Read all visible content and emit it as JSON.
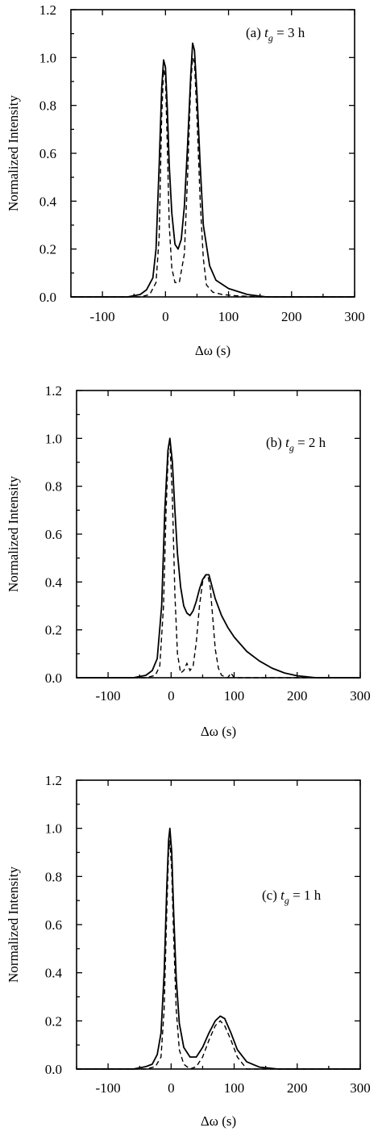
{
  "chart_data": [
    {
      "type": "line",
      "panel_label": "(a) ",
      "panel_var": "t",
      "panel_sub": "g",
      "panel_rest": " = 3 h",
      "xlabel": "Δω (s)",
      "ylabel": "Normalized Intensity",
      "xlim": [
        -150,
        300
      ],
      "ylim": [
        0,
        1.2
      ],
      "xticks": [
        -100,
        0,
        100,
        200,
        300
      ],
      "xtick_labels": [
        "-100",
        "0",
        "100",
        "200",
        "300"
      ],
      "yticks": [
        0,
        0.2,
        0.4,
        0.6,
        0.8,
        1.0,
        1.2
      ],
      "ytick_labels": [
        "0.0",
        "0.2",
        "0.4",
        "0.6",
        "0.8",
        "1.0",
        "1.2"
      ],
      "series": [
        {
          "style": "solid",
          "x": [
            -150,
            -60,
            -40,
            -30,
            -20,
            -15,
            -10,
            -6,
            -3,
            0,
            3,
            6,
            10,
            15,
            20,
            25,
            30,
            35,
            40,
            43,
            46,
            50,
            55,
            60,
            70,
            80,
            100,
            130,
            160,
            200,
            240,
            300
          ],
          "y": [
            0.0,
            0.0,
            0.01,
            0.03,
            0.08,
            0.2,
            0.55,
            0.87,
            0.99,
            0.96,
            0.78,
            0.55,
            0.35,
            0.22,
            0.2,
            0.24,
            0.38,
            0.63,
            0.92,
            1.06,
            1.03,
            0.85,
            0.55,
            0.3,
            0.13,
            0.07,
            0.035,
            0.01,
            0.0,
            0.0,
            0.0,
            0.0
          ]
        },
        {
          "style": "dashed",
          "x": [
            -150,
            -40,
            -25,
            -15,
            -10,
            -6,
            -3,
            0,
            3,
            6,
            10,
            15,
            22,
            30,
            35,
            40,
            43,
            46,
            50,
            55,
            60,
            65,
            75,
            90,
            110,
            150,
            300
          ],
          "y": [
            0.0,
            0.0,
            0.01,
            0.06,
            0.25,
            0.75,
            0.95,
            0.92,
            0.62,
            0.3,
            0.12,
            0.06,
            0.06,
            0.18,
            0.5,
            0.88,
            1.0,
            0.98,
            0.75,
            0.4,
            0.16,
            0.05,
            0.02,
            0.01,
            0.005,
            0.0,
            0.0
          ]
        }
      ]
    },
    {
      "type": "line",
      "panel_label": "(b) ",
      "panel_var": "t",
      "panel_sub": "g",
      "panel_rest": " = 2 h",
      "xlabel": "Δω (s)",
      "ylabel": "Normalized Intensity",
      "xlim": [
        -150,
        300
      ],
      "ylim": [
        0,
        1.2
      ],
      "xticks": [
        -100,
        0,
        100,
        200,
        300
      ],
      "xtick_labels": [
        "-100",
        "0",
        "100",
        "200",
        "300"
      ],
      "yticks": [
        0,
        0.2,
        0.4,
        0.6,
        0.8,
        1.0,
        1.2
      ],
      "ytick_labels": [
        "0.0",
        "0.2",
        "0.4",
        "0.6",
        "0.8",
        "1.0",
        "1.2"
      ],
      "series": [
        {
          "style": "solid",
          "x": [
            -150,
            -60,
            -40,
            -30,
            -22,
            -15,
            -10,
            -5,
            -2,
            2,
            6,
            10,
            15,
            20,
            25,
            30,
            35,
            40,
            45,
            50,
            55,
            60,
            65,
            70,
            80,
            90,
            100,
            120,
            140,
            160,
            180,
            200,
            230,
            300
          ],
          "y": [
            0.0,
            0.0,
            0.01,
            0.03,
            0.08,
            0.3,
            0.7,
            0.95,
            1.0,
            0.9,
            0.7,
            0.52,
            0.38,
            0.3,
            0.27,
            0.26,
            0.28,
            0.32,
            0.37,
            0.41,
            0.43,
            0.43,
            0.38,
            0.33,
            0.26,
            0.21,
            0.17,
            0.11,
            0.07,
            0.04,
            0.02,
            0.008,
            0.0,
            0.0
          ]
        },
        {
          "style": "dashed",
          "x": [
            -150,
            -40,
            -25,
            -18,
            -12,
            -8,
            -4,
            -2,
            2,
            6,
            10,
            15,
            20,
            25,
            30,
            35,
            40,
            45,
            50,
            55,
            58,
            62,
            66,
            70,
            75,
            80,
            90,
            95,
            100,
            110,
            300
          ],
          "y": [
            0.0,
            0.0,
            0.01,
            0.05,
            0.3,
            0.7,
            0.97,
            0.99,
            0.75,
            0.35,
            0.1,
            0.02,
            0.03,
            0.06,
            0.03,
            0.05,
            0.15,
            0.3,
            0.4,
            0.43,
            0.43,
            0.38,
            0.25,
            0.12,
            0.04,
            0.01,
            0.0,
            0.02,
            0.0,
            0.0,
            0.0
          ]
        }
      ]
    },
    {
      "type": "line",
      "panel_label": "(c) ",
      "panel_var": "t",
      "panel_sub": "g",
      "panel_rest": " = 1 h",
      "xlabel": "Δω (s)",
      "ylabel": "Normalized Intensity",
      "xlim": [
        -150,
        300
      ],
      "ylim": [
        0,
        1.2
      ],
      "xticks": [
        -100,
        0,
        100,
        200,
        300
      ],
      "xtick_labels": [
        "-100",
        "0",
        "100",
        "200",
        "300"
      ],
      "yticks": [
        0,
        0.2,
        0.4,
        0.6,
        0.8,
        1.0,
        1.2
      ],
      "ytick_labels": [
        "0.0",
        "0.2",
        "0.4",
        "0.6",
        "0.8",
        "1.0",
        "1.2"
      ],
      "series": [
        {
          "style": "solid",
          "x": [
            -150,
            -60,
            -40,
            -30,
            -22,
            -16,
            -11,
            -7,
            -4,
            -2,
            1,
            4,
            8,
            13,
            20,
            30,
            40,
            50,
            60,
            70,
            78,
            85,
            95,
            105,
            120,
            140,
            170,
            300
          ],
          "y": [
            0.0,
            0.0,
            0.01,
            0.02,
            0.06,
            0.15,
            0.4,
            0.75,
            0.95,
            1.0,
            0.9,
            0.65,
            0.38,
            0.19,
            0.09,
            0.05,
            0.05,
            0.09,
            0.15,
            0.2,
            0.22,
            0.21,
            0.15,
            0.08,
            0.03,
            0.008,
            0.0,
            0.0
          ]
        },
        {
          "style": "dashed",
          "x": [
            -150,
            -40,
            -25,
            -16,
            -11,
            -7,
            -4,
            -2,
            1,
            4,
            8,
            13,
            20,
            30,
            40,
            50,
            60,
            70,
            78,
            85,
            95,
            105,
            120,
            300
          ],
          "y": [
            0.0,
            0.0,
            0.01,
            0.05,
            0.25,
            0.65,
            0.9,
            0.95,
            0.82,
            0.55,
            0.25,
            0.08,
            0.02,
            0.0,
            0.01,
            0.05,
            0.12,
            0.18,
            0.2,
            0.18,
            0.12,
            0.05,
            0.0,
            0.0
          ]
        }
      ]
    }
  ]
}
